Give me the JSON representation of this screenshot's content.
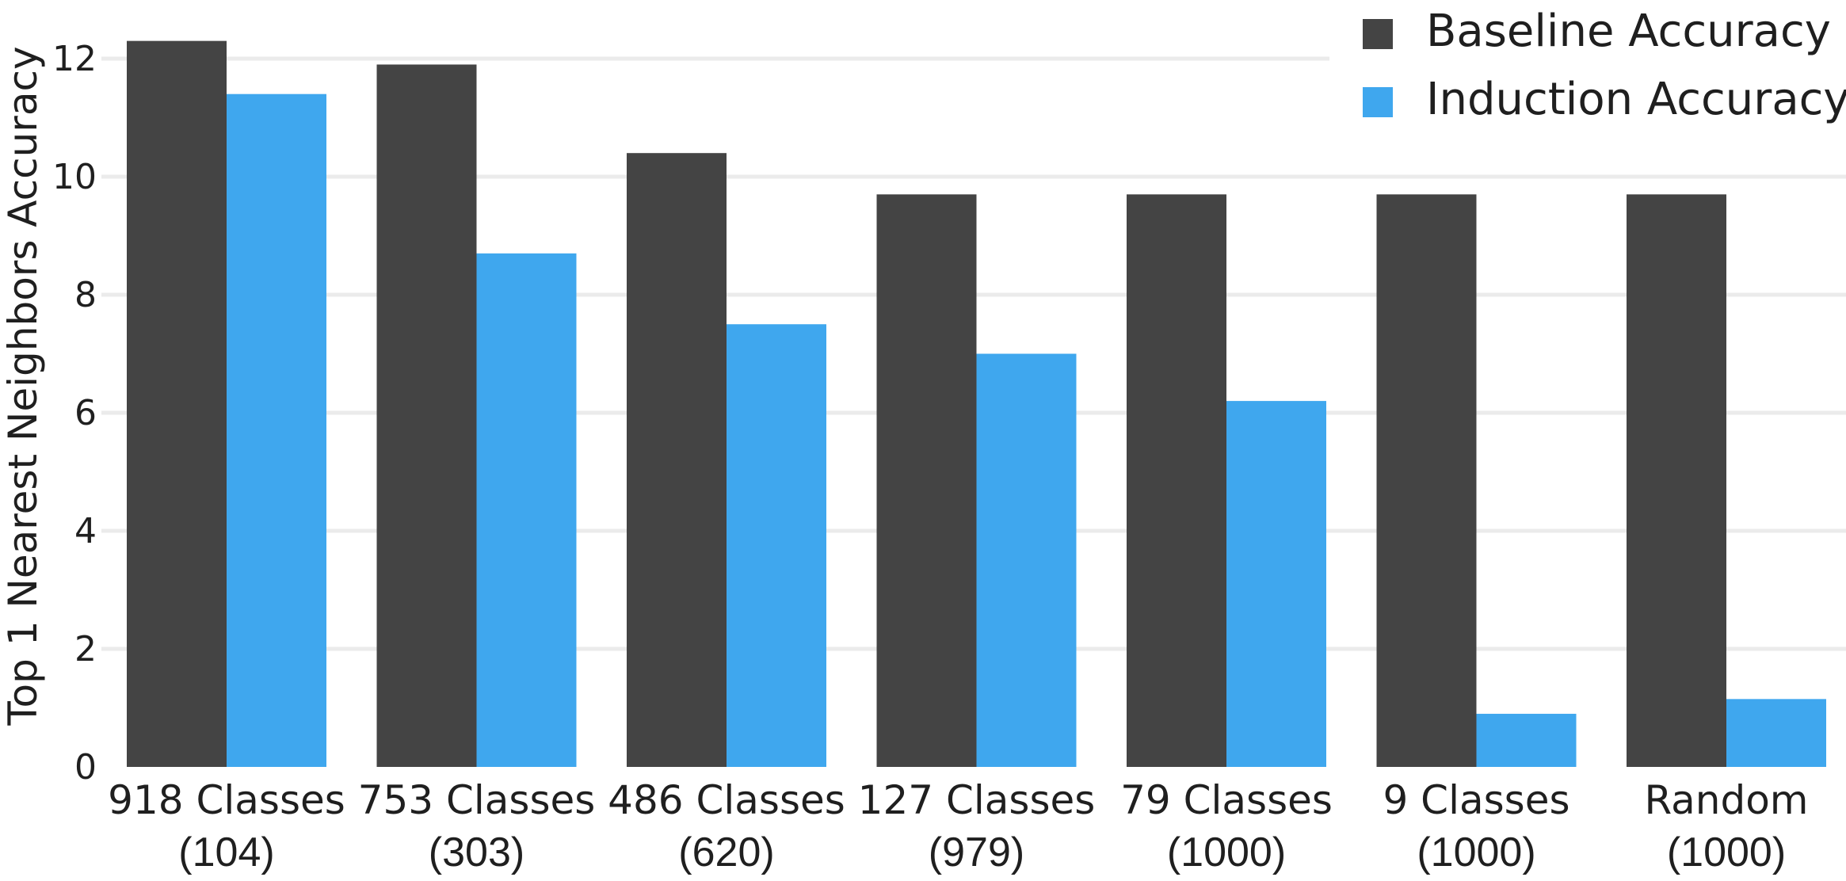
{
  "chart_data": {
    "type": "bar",
    "ylabel": "Top 1 Nearest Neighbors Accuracy",
    "xlabel": "",
    "ylim": [
      0,
      12.6
    ],
    "yticks": [
      0,
      2,
      4,
      6,
      8,
      10,
      12
    ],
    "grid": true,
    "legend_position": "top-right",
    "categories": [
      {
        "line1": "918 Classes",
        "line2": "(104)"
      },
      {
        "line1": "753 Classes",
        "line2": "(303)"
      },
      {
        "line1": "486 Classes",
        "line2": "(620)"
      },
      {
        "line1": "127 Classes",
        "line2": "(979)"
      },
      {
        "line1": "79 Classes",
        "line2": "(1000)"
      },
      {
        "line1": "9 Classes",
        "line2": "(1000)"
      },
      {
        "line1": "Random",
        "line2": "(1000)"
      }
    ],
    "series": [
      {
        "name": "Baseline Accuracy",
        "color": "#444444",
        "values": [
          12.3,
          11.9,
          10.4,
          9.7,
          9.7,
          9.7,
          9.7
        ]
      },
      {
        "name": "Induction Accuracy",
        "color": "#3fa7ee",
        "values": [
          11.4,
          8.7,
          7.5,
          7.0,
          6.2,
          0.9,
          1.15
        ]
      }
    ]
  }
}
